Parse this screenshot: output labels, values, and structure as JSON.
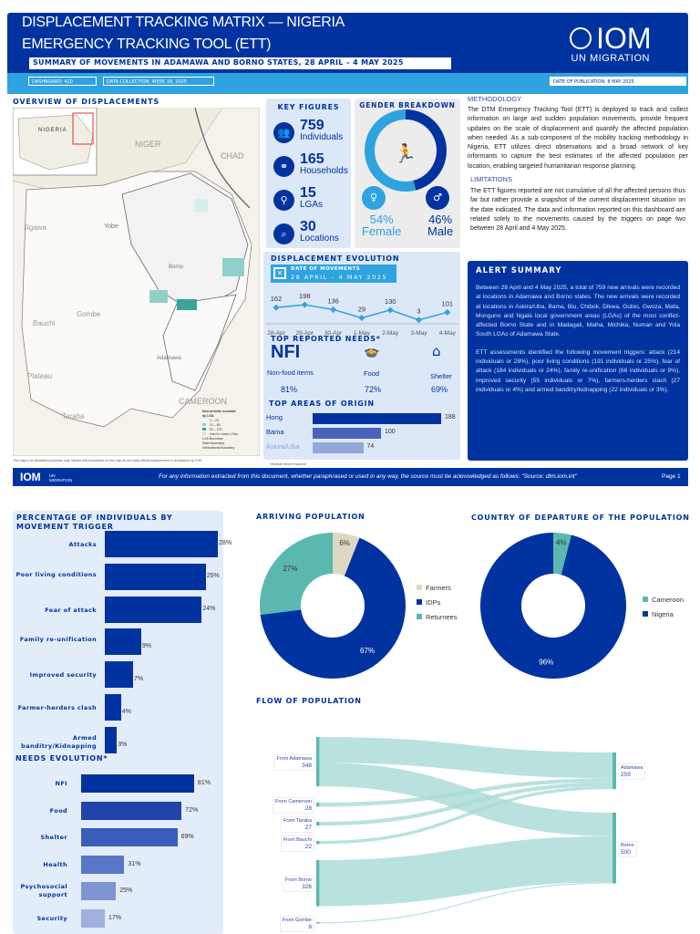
{
  "header": {
    "title_line1": "DISPLACEMENT TRACKING MATRIX — NIGERIA",
    "title_line2": "EMERGENCY TRACKING TOOL (ETT)",
    "subtitle": "SUMMARY OF MOVEMENTS IN ADAMAWA AND BORNO STATES, 28 APRIL – 4 MAY 2025",
    "dashboard": "DASHBOARD: 420",
    "data_collection": "DATA COLLECTION: WEEK 18, 2025",
    "publication": "DATE OF PUBLICATION: 8 MAY 2025",
    "logo_main": "IOM",
    "logo_sub": "UN MIGRATION"
  },
  "map": {
    "title": "OVERVIEW OF DISPLACEMENTS",
    "labels": {
      "niger": "NIGER",
      "chad": "CHAD",
      "cameroon": "CAMEROON",
      "nigeria": "NIGERIA",
      "jigawa": "Jigawa",
      "yobe": "Yobe",
      "borno": "Borno",
      "gombe": "Gombe",
      "bauchi": "Bauchi",
      "plateau": "Plateau",
      "taraba": "Taraba",
      "adamawa": "Adamawa"
    },
    "legend_title": "New arrivals recorded by LGA",
    "legend": [
      "1 – 20",
      "21 – 80",
      "81 – 270",
      "Hard to reach LGAs",
      "LGA Boundary",
      "State Boundary",
      "International Boundary"
    ],
    "disclaimer": "This map is for illustration purposes only. Names and boundaries on this map do not imply official endorsement or acceptance by IOM."
  },
  "key_figures": {
    "title": "KEY FIGURES",
    "items": [
      {
        "value": "759",
        "label": "Individuals",
        "icon": "people-icon"
      },
      {
        "value": "165",
        "label": "Households",
        "icon": "household-icon"
      },
      {
        "value": "15",
        "label": "LGAs",
        "icon": "location-pin-icon"
      },
      {
        "value": "30",
        "label": "Locations",
        "icon": "location-search-icon"
      }
    ]
  },
  "gender": {
    "title": "GENDER BREAKDOWN",
    "female_pct": 54,
    "male_pct": 46,
    "female_value": "54%",
    "female_label": "Female",
    "male_value": "46%",
    "male_label": "Male",
    "colors": {
      "female": "#2ea3e0",
      "male": "#0033a0"
    }
  },
  "evolution": {
    "title": "DISPLACEMENT EVOLUTION",
    "date_label": "DATE OF MOVEMENTS",
    "date_range": "28 APRIL – 4 MAY 2025"
  },
  "chart_data": [
    {
      "type": "line",
      "title": "DISPLACEMENT EVOLUTION",
      "categories": [
        "28-Apr",
        "29-Apr",
        "30-Apr",
        "1-May",
        "2-May",
        "3-May",
        "4-May"
      ],
      "values": [
        162,
        198,
        136,
        29,
        130,
        3,
        101
      ]
    },
    {
      "type": "bar",
      "title": "TOP AREAS OF ORIGIN",
      "categories": [
        "Hong",
        "Bama",
        "Askira/Uba"
      ],
      "values": [
        188,
        100,
        74
      ]
    },
    {
      "type": "bar",
      "title": "PERCENTAGE OF INDIVIDUALS BY MOVEMENT TRIGGER",
      "categories": [
        "Attacks",
        "Poor living conditions",
        "Fear of attack",
        "Family re-unification",
        "Improved security",
        "Farmer-herders clash",
        "Armed banditry/Kidnapping"
      ],
      "values": [
        28,
        25,
        24,
        9,
        7,
        4,
        3
      ]
    },
    {
      "type": "bar",
      "title": "NEEDS EVOLUTION*",
      "categories": [
        "NFI",
        "Food",
        "Shelter",
        "Health",
        "Psychosocial support",
        "Security"
      ],
      "values": [
        81,
        72,
        69,
        31,
        25,
        17
      ]
    },
    {
      "type": "pie",
      "title": "ARRIVING POPULATION",
      "categories": [
        "Farmers",
        "IDPs",
        "Returnees"
      ],
      "values": [
        6,
        67,
        27
      ],
      "colors": [
        "#ddd8c4",
        "#0033a0",
        "#5bb8b0"
      ]
    },
    {
      "type": "pie",
      "title": "COUNTRY OF DEPARTURE OF THE POPULATION",
      "categories": [
        "Cameroon",
        "Nigeria"
      ],
      "values": [
        4,
        96
      ],
      "colors": [
        "#5bb8b0",
        "#0033a0"
      ]
    },
    {
      "type": "sankey",
      "title": "FLOW OF POPULATION",
      "sources": [
        {
          "name": "From Adamawa",
          "value": 348
        },
        {
          "name": "From Cameroon",
          "value": 28
        },
        {
          "name": "From Taraba",
          "value": 27
        },
        {
          "name": "From Bauchi",
          "value": 22
        },
        {
          "name": "From Borno",
          "value": 326
        },
        {
          "name": "From Gombe",
          "value": 8
        }
      ],
      "targets": [
        {
          "name": "Adamawa",
          "value": 259
        },
        {
          "name": "Borno",
          "value": 500
        }
      ],
      "links": [
        {
          "source": "From Adamawa",
          "target": "Adamawa",
          "value": 182
        },
        {
          "source": "From Adamawa",
          "target": "Borno",
          "value": 166
        },
        {
          "source": "From Cameroon",
          "target": "Adamawa",
          "value": 28
        },
        {
          "source": "From Taraba",
          "target": "Adamawa",
          "value": 27
        },
        {
          "source": "From Bauchi",
          "target": "Adamawa",
          "value": 22
        },
        {
          "source": "From Borno",
          "target": "Borno",
          "value": 326
        },
        {
          "source": "From Gombe",
          "target": "Borno",
          "value": 8
        }
      ]
    }
  ],
  "needs": {
    "title": "TOP REPORTED NEEDS*",
    "items": [
      {
        "icon_text": "NFI",
        "label": "Non-food items",
        "value": "81%"
      },
      {
        "label": "Food",
        "value": "72%"
      },
      {
        "label": "Shelter",
        "value": "69%"
      }
    ],
    "footnote": "*Multiple choice response"
  },
  "origin": {
    "title": "TOP AREAS OF ORIGIN"
  },
  "methodology": {
    "title": "METHODOLOGY",
    "text": "The DTM Emergency Tracking Tool (ETT) is deployed to track and collect information on large and sudden population movements, provide frequent updates on the scale of displacement and quantify the affected population when needed. As a sub-component of the mobility tracking methodology in Nigeria, ETT utilizes direct observations and a broad network of key informants to capture the best estimates of the affected population per location, enabling targeted humanitarian response planning.",
    "lim_title": "LIMITATIONS",
    "lim_text": "The ETT figures reported are not cumulative of all the affected persons thus far but rather provide a snapshot of the current displacement situation on the date indicated. The data and information reported on this dashboard are related solely to the movements caused by the triggers on page two between 28 April and 4 May 2025."
  },
  "alert": {
    "title": "ALERT SUMMARY",
    "p1": "Between 28 April and 4 May 2025, a total of 759 new arrivals were recorded at locations in Adamawa and Borno states. The new arrivals were recorded at locations in Askira/Uba, Bama, Biu, Chibok, Dikwa, Gubio, Gwoza, Mafa, Monguno and Ngala local government areas (LGAs) of the most conflict-affected Borno State and in Madagali, Maiha, Michika, Numan and Yola South LGAs of Adamawa State.",
    "p2": "ETT assessments identified the following movement triggers: attack (214 individuals or 28%), poor living conditions (191 individuals or 25%), fear of attack (184 individuals or 24%), family re-unification (66 individuals or 9%), improved security (55 individuals or 7%), farmers-herders clash (27 individuals or 4%) and armed banditry/kidnapping (22 individuals or 3%)."
  },
  "footer": {
    "source": "For any information extracted from this document, whether paraphrased or used in any way, the source must be acknowledged as follows: \"Source: dtm.iom.int\"",
    "page": "Page 1",
    "logo": "IOM",
    "logo_sub": "UN MIGRATION"
  },
  "page2": {
    "triggers_title": "PERCENTAGE OF INDIVIDUALS BY MOVEMENT TRIGGER",
    "needs_title": "NEEDS EVOLUTION*",
    "arriving_title": "ARRIVING POPULATION",
    "country_title": "COUNTRY OF DEPARTURE OF THE POPULATION",
    "flow_title": "FLOW OF POPULATION"
  }
}
